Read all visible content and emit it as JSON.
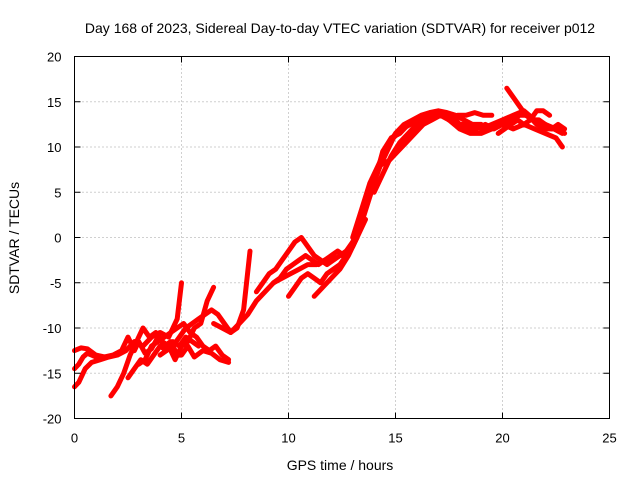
{
  "chart_data": {
    "type": "line",
    "title": "Day 168 of 2023, Sidereal Day-to-day VTEC variation (SDTVAR) for receiver p012",
    "xlabel": "GPS time / hours",
    "ylabel": "SDTVAR / TECUs",
    "xlim": [
      0,
      25
    ],
    "ylim": [
      -20,
      20
    ],
    "xticks": [
      0,
      5,
      10,
      15,
      20,
      25
    ],
    "yticks": [
      -20,
      -15,
      -10,
      -5,
      0,
      5,
      10,
      15,
      20
    ],
    "grid": true,
    "color": "#ff0000",
    "series": [
      {
        "x": [
          0.0,
          0.3,
          0.6,
          1.0,
          1.4,
          1.8,
          2.2,
          2.5,
          2.8,
          3.0,
          3.3,
          3.6,
          3.9,
          4.2,
          4.5,
          4.8,
          5.0,
          5.3,
          5.6,
          6.0,
          6.4,
          6.8,
          7.2
        ],
        "y": [
          -12.5,
          -12.2,
          -12.3,
          -13.0,
          -13.2,
          -13.0,
          -12.5,
          -11.0,
          -12.5,
          -11.5,
          -12.8,
          -12.3,
          -11.0,
          -12.0,
          -11.5,
          -13.0,
          -13.0,
          -12.0,
          -13.2,
          -12.5,
          -12.8,
          -13.5,
          -13.8
        ]
      },
      {
        "x": [
          0.0,
          0.2,
          0.5,
          0.8,
          1.2,
          1.6,
          2.0,
          2.4,
          2.8,
          3.2,
          3.6,
          4.0,
          4.4,
          4.8,
          5.0
        ],
        "y": [
          -16.5,
          -16.0,
          -14.5,
          -13.8,
          -13.5,
          -13.2,
          -13.0,
          -12.5,
          -11.5,
          -12.0,
          -11.0,
          -10.5,
          -11.0,
          -9.0,
          -5.0
        ]
      },
      {
        "x": [
          0.0,
          0.2,
          0.4,
          0.6,
          0.8,
          1.0
        ],
        "y": [
          -14.5,
          -14.0,
          -13.2,
          -12.8,
          -13.0,
          -13.2
        ]
      },
      {
        "x": [
          1.7,
          2.0,
          2.3,
          2.6,
          2.9,
          3.2,
          3.5,
          3.8,
          4.1,
          4.4,
          4.7,
          5.0,
          5.3,
          5.6,
          5.9,
          6.2,
          6.5
        ],
        "y": [
          -17.5,
          -16.5,
          -15.0,
          -13.0,
          -11.5,
          -10.0,
          -11.0,
          -10.5,
          -11.5,
          -12.0,
          -13.5,
          -12.0,
          -11.5,
          -10.0,
          -9.5,
          -7.0,
          -5.5
        ]
      },
      {
        "x": [
          2.5,
          2.8,
          3.1,
          3.4,
          3.7,
          4.0,
          4.3,
          4.6,
          4.9,
          5.2,
          5.5,
          5.8
        ],
        "y": [
          -15.5,
          -14.5,
          -13.5,
          -14.0,
          -13.0,
          -12.0,
          -12.5,
          -11.5,
          -12.0,
          -11.0,
          -11.5,
          -12.0
        ]
      },
      {
        "x": [
          3.0,
          3.3,
          3.6,
          3.9,
          4.2,
          4.5,
          4.8,
          5.1,
          5.4,
          5.7,
          6.0,
          6.3,
          6.6,
          6.9,
          7.2
        ],
        "y": [
          -14.0,
          -13.5,
          -12.0,
          -11.5,
          -11.0,
          -10.5,
          -10.0,
          -9.5,
          -10.5,
          -11.0,
          -12.0,
          -12.5,
          -12.0,
          -13.0,
          -13.5
        ]
      },
      {
        "x": [
          4.0,
          4.3,
          4.6,
          4.9,
          5.2,
          5.5,
          5.8,
          6.1,
          6.4,
          6.7,
          7.0,
          7.3,
          7.6,
          7.9,
          8.2
        ],
        "y": [
          -13.0,
          -12.5,
          -12.0,
          -11.0,
          -10.0,
          -9.5,
          -9.0,
          -8.5,
          -8.0,
          -8.5,
          -9.5,
          -10.5,
          -10.0,
          -8.0,
          -1.5
        ]
      },
      {
        "x": [
          6.5,
          6.9,
          7.3,
          7.7,
          8.1,
          8.5,
          8.9,
          9.3,
          9.7,
          10.1,
          10.5,
          10.9,
          11.3,
          11.7,
          12.1
        ],
        "y": [
          -9.5,
          -10.0,
          -10.5,
          -9.5,
          -8.5,
          -7.0,
          -6.0,
          -5.0,
          -4.5,
          -4.0,
          -3.5,
          -3.0,
          -3.0,
          -2.5,
          -2.0
        ]
      },
      {
        "x": [
          8.5,
          8.8,
          9.1,
          9.4,
          9.7,
          10.0,
          10.3,
          10.6,
          10.9,
          11.2,
          11.5,
          11.8,
          12.1,
          12.4,
          12.7,
          13.0
        ],
        "y": [
          -6.0,
          -5.0,
          -4.0,
          -3.5,
          -2.5,
          -1.5,
          -0.5,
          0.0,
          -1.0,
          -2.0,
          -2.5,
          -3.0,
          -2.5,
          -2.0,
          -1.5,
          -0.5
        ]
      },
      {
        "x": [
          9.3,
          9.6,
          9.9,
          10.2,
          10.5,
          10.8,
          11.1,
          11.4,
          11.7,
          12.0,
          12.3,
          12.6,
          12.9,
          13.2
        ],
        "y": [
          -5.0,
          -4.5,
          -3.5,
          -3.0,
          -2.5,
          -2.0,
          -2.5,
          -3.0,
          -2.5,
          -2.0,
          -1.5,
          -2.0,
          -1.0,
          0.0
        ]
      },
      {
        "x": [
          10.0,
          10.3,
          10.6,
          10.9,
          11.2,
          11.5,
          11.8,
          12.1,
          12.4,
          12.7,
          13.0,
          13.3,
          13.6
        ],
        "y": [
          -6.5,
          -5.5,
          -4.5,
          -4.0,
          -4.5,
          -5.0,
          -4.0,
          -3.5,
          -3.0,
          -2.0,
          -1.0,
          0.5,
          2.0
        ]
      },
      {
        "x": [
          11.2,
          11.6,
          12.0,
          12.4,
          12.8,
          13.2,
          13.6,
          14.0,
          14.4,
          14.8,
          15.2,
          15.6,
          16.0
        ],
        "y": [
          -6.5,
          -5.5,
          -4.5,
          -3.5,
          -2.0,
          0.0,
          3.0,
          6.0,
          9.5,
          11.0,
          11.5,
          12.5,
          13.0
        ]
      },
      {
        "x": [
          12.5,
          12.9,
          13.3,
          13.7,
          14.1,
          14.5,
          14.9,
          15.3,
          15.7,
          16.1,
          16.5,
          16.9
        ],
        "y": [
          -2.0,
          -1.0,
          1.0,
          4.0,
          7.0,
          9.0,
          11.0,
          12.0,
          12.5,
          13.0,
          13.5,
          13.5
        ]
      },
      {
        "x": [
          13.0,
          13.4,
          13.8,
          14.2,
          14.6,
          15.0,
          15.4,
          15.8,
          16.2,
          16.6,
          17.0,
          17.4,
          17.8,
          18.2,
          18.6,
          19.0
        ],
        "y": [
          0.0,
          3.0,
          6.0,
          8.0,
          10.0,
          11.5,
          12.5,
          13.0,
          13.5,
          13.8,
          14.0,
          13.8,
          13.5,
          13.0,
          12.5,
          12.5
        ]
      },
      {
        "x": [
          13.5,
          13.9,
          14.3,
          14.7,
          15.1,
          15.5,
          15.9,
          16.3,
          16.7,
          17.1,
          17.5,
          17.9,
          18.3,
          18.7,
          19.1,
          19.5
        ],
        "y": [
          3.5,
          5.5,
          8.0,
          8.5,
          9.5,
          10.5,
          11.5,
          12.5,
          13.0,
          13.5,
          13.0,
          13.5,
          13.5,
          13.8,
          13.5,
          13.5
        ]
      },
      {
        "x": [
          14.0,
          14.4,
          14.8,
          15.2,
          15.6,
          16.0,
          16.4,
          16.8,
          17.2,
          17.6,
          18.0,
          18.4,
          18.8,
          19.2,
          19.6,
          20.0,
          20.4,
          20.8,
          21.2,
          21.6,
          22.0,
          22.4,
          22.8
        ],
        "y": [
          5.0,
          7.0,
          9.0,
          10.5,
          11.5,
          12.5,
          13.0,
          13.5,
          13.8,
          13.5,
          12.5,
          12.0,
          12.0,
          12.5,
          12.0,
          12.5,
          13.0,
          13.5,
          13.5,
          12.5,
          12.0,
          12.0,
          11.5
        ]
      },
      {
        "x": [
          16.0,
          16.5,
          17.0,
          17.5,
          18.0,
          18.5,
          19.0,
          19.5,
          20.0,
          20.5,
          21.0,
          21.5,
          22.0,
          22.5,
          22.8
        ],
        "y": [
          13.0,
          13.5,
          13.8,
          13.0,
          12.0,
          11.5,
          11.5,
          12.0,
          12.5,
          12.0,
          12.5,
          12.0,
          11.5,
          11.0,
          10.0
        ]
      },
      {
        "x": [
          17.5,
          18.0,
          18.5,
          19.0,
          19.5,
          20.0,
          20.5,
          21.0,
          21.5,
          22.0,
          22.5,
          22.9
        ],
        "y": [
          13.0,
          12.5,
          12.5,
          12.0,
          12.5,
          13.0,
          13.5,
          14.0,
          13.0,
          12.5,
          12.0,
          11.5
        ]
      },
      {
        "x": [
          20.2,
          20.5,
          20.8,
          21.1,
          21.4,
          21.7,
          22.0,
          22.3,
          22.6,
          22.9
        ],
        "y": [
          16.5,
          15.5,
          14.5,
          13.5,
          13.0,
          13.0,
          12.5,
          12.0,
          12.5,
          12.0
        ]
      },
      {
        "x": [
          19.8,
          20.1,
          20.4,
          20.7,
          21.0,
          21.3,
          21.6,
          21.9,
          22.2
        ],
        "y": [
          11.5,
          12.0,
          12.5,
          13.0,
          12.5,
          13.0,
          14.0,
          14.0,
          13.5
        ]
      }
    ]
  }
}
